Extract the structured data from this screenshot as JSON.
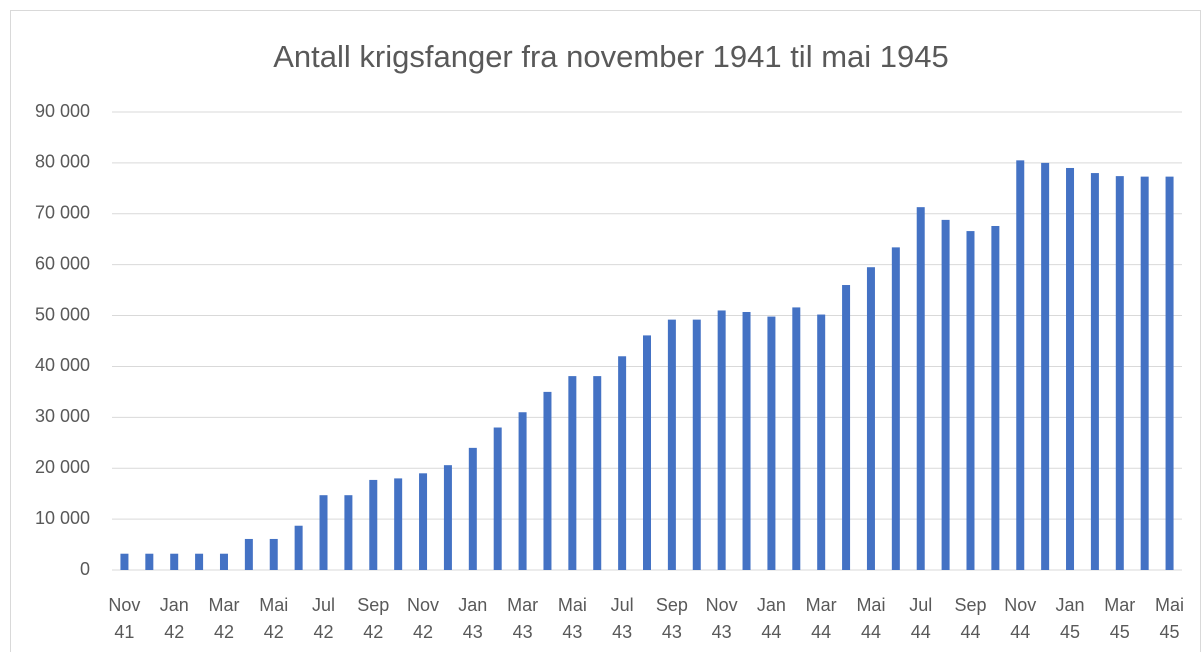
{
  "chart_data": {
    "type": "bar",
    "title": "Antall krigsfanger fra november 1941 til mai 1945",
    "categories": [
      "Nov 41",
      null,
      "Jan 42",
      null,
      "Mar 42",
      null,
      "Mai 42",
      null,
      "Jul 42",
      null,
      "Sep 42",
      null,
      "Nov 42",
      null,
      "Jan 43",
      null,
      "Mar 43",
      null,
      "Mai 43",
      null,
      "Jul 43",
      null,
      "Sep 43",
      null,
      "Nov 43",
      null,
      "Jan 44",
      null,
      "Mar 44",
      null,
      "Mai 44",
      null,
      "Jul 44",
      null,
      "Sep 44",
      null,
      "Nov 44",
      null,
      "Jan 45",
      null,
      "Mar 45",
      null,
      "Mai 45"
    ],
    "values": [
      3200,
      3200,
      3200,
      3200,
      3200,
      6100,
      6100,
      8700,
      14700,
      14700,
      17700,
      18000,
      19000,
      20600,
      24000,
      28000,
      31000,
      35000,
      38100,
      38100,
      42000,
      46100,
      49200,
      49200,
      51000,
      50700,
      49800,
      51600,
      50200,
      56000,
      59500,
      63400,
      71300,
      68800,
      66600,
      67600,
      80500,
      80000,
      79000,
      78000,
      77400,
      77300,
      77300
    ],
    "color": "#4472c4",
    "ylim": [
      0,
      90000
    ],
    "yticks": [
      0,
      {
        "value": 10000,
        "label": "10 000"
      },
      {
        "value": 20000,
        "label": "20 000"
      },
      {
        "value": 30000,
        "label": "30 000"
      },
      {
        "value": 40000,
        "label": "40 000"
      },
      {
        "value": 50000,
        "label": "50 000"
      },
      {
        "value": 60000,
        "label": "60 000"
      },
      {
        "value": 70000,
        "label": "70 000"
      },
      {
        "value": 80000,
        "label": "80 000"
      },
      {
        "value": 90000,
        "label": "90 000"
      }
    ],
    "grid": true
  }
}
